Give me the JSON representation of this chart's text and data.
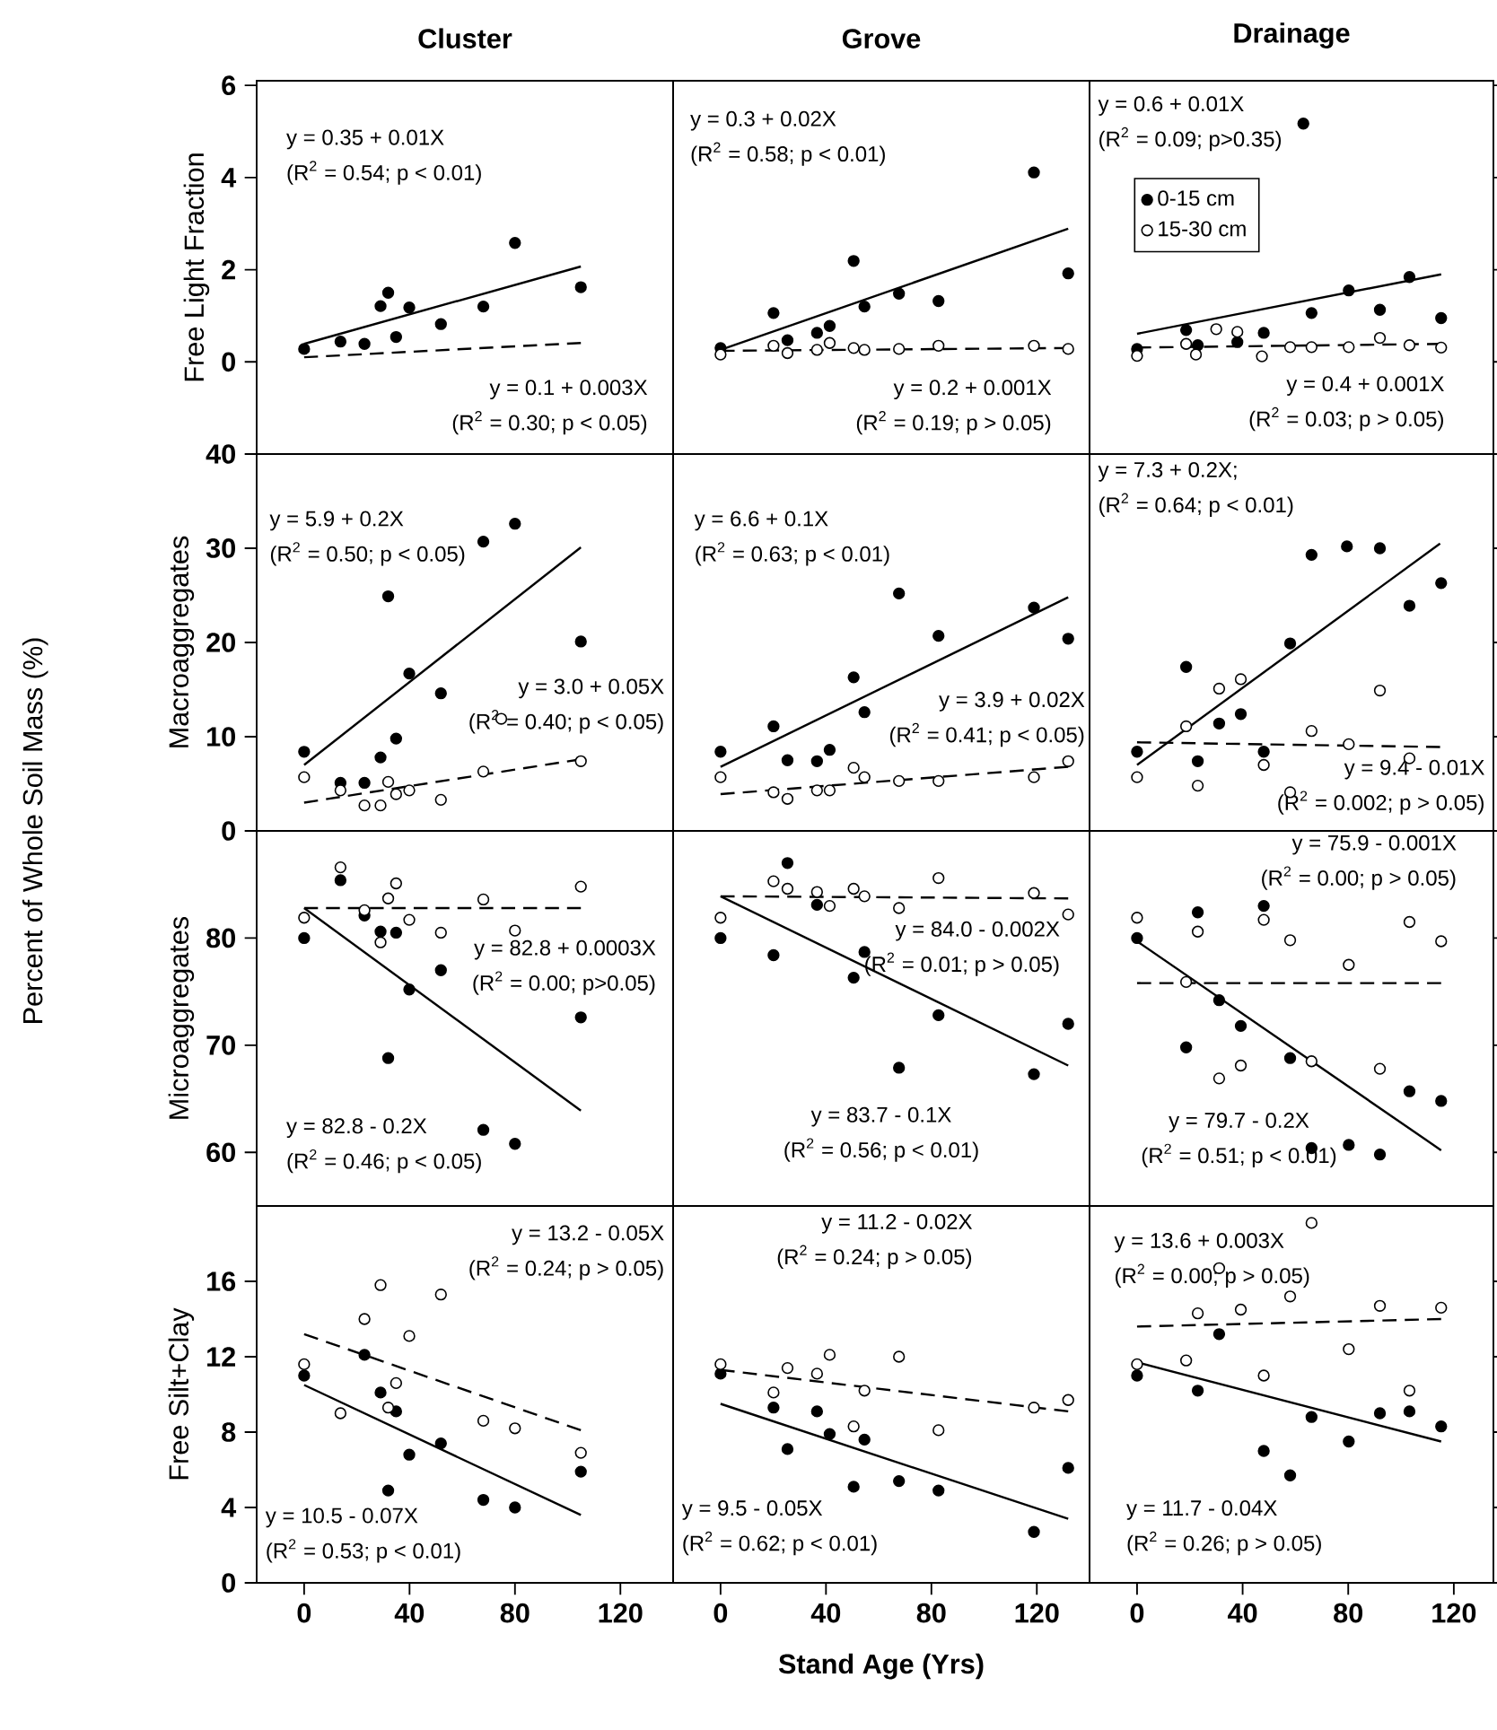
{
  "chart_data": [
    {
      "type": "scatter",
      "title": "Cluster",
      "ylabel": "Free Light Fraction",
      "xlim": [
        -18,
        140
      ],
      "ylim": [
        -2,
        6.1
      ],
      "xticks": [
        0,
        40,
        80,
        120
      ],
      "yticks": [
        0,
        2,
        4,
        6
      ],
      "tick_labels": "y",
      "series": [
        {
          "marker": "circle",
          "color": "#000000",
          "x": [
            0,
            13.8,
            22.9,
            29.0,
            31.9,
            34.9,
            39.9,
            51.9,
            68.0,
            80.0,
            105.0
          ],
          "values": [
            0.28,
            0.44,
            0.39,
            1.21,
            1.5,
            0.54,
            1.18,
            0.82,
            1.2,
            2.58,
            1.62
          ]
        },
        {
          "type": "line",
          "marker": "none",
          "color": "#000000",
          "line_style": "solid",
          "x": [
            0,
            105
          ],
          "values": [
            0.39,
            2.07
          ]
        },
        {
          "type": "line",
          "marker": "none",
          "color": "#000000",
          "line_style": "dashed",
          "x": [
            0,
            105
          ],
          "values": [
            0.1,
            0.41
          ]
        }
      ],
      "annotations": [
        "y = 0.35 + 0.01X",
        "(R$^{2}$ = 0.54; p < 0.01)",
        "y = 0.1 + 0.003X",
        "(R$^{2}$ = 0.30; p < 0.05)"
      ]
    },
    {
      "type": "scatter",
      "title": "Grove",
      "xlim": [
        -18,
        140
      ],
      "ylim": [
        -2,
        6.1
      ],
      "xticks": [
        0,
        40,
        80,
        120
      ],
      "yticks": [
        0,
        2,
        4,
        6
      ],
      "tick_labels": false,
      "series": [
        {
          "marker": "circle",
          "color": "#000000",
          "x": [
            0,
            20.1,
            25.4,
            36.6,
            41.4,
            50.5,
            54.6,
            67.7,
            82.7,
            118.9,
            131.9
          ],
          "values": [
            0.3,
            1.06,
            0.47,
            0.63,
            0.78,
            2.19,
            1.2,
            1.48,
            1.32,
            4.11,
            1.92
          ]
        },
        {
          "marker": "circle",
          "color": "#ffffff",
          "x": [
            0,
            20.1,
            25.4,
            36.6,
            41.4,
            50.5,
            54.6,
            67.7,
            82.7,
            118.9,
            131.9
          ],
          "values": [
            0.16,
            0.35,
            0.19,
            0.26,
            0.41,
            0.3,
            0.26,
            0.28,
            0.35,
            0.35,
            0.28
          ]
        },
        {
          "type": "line",
          "marker": "none",
          "color": "#000000",
          "line_style": "solid",
          "x": [
            0,
            131.9
          ],
          "values": [
            0.26,
            2.89
          ]
        },
        {
          "type": "line",
          "marker": "none",
          "color": "#000000",
          "line_style": "dashed",
          "x": [
            0,
            131.9
          ],
          "values": [
            0.24,
            0.3
          ]
        }
      ],
      "annotations": [
        "y = 0.3 + 0.02X",
        "(R$^{2}$ = 0.58; p < 0.01)",
        "y = 0.2 + 0.001X",
        "(R$^{2}$ = 0.19; p > 0.05)"
      ]
    },
    {
      "type": "scatter",
      "title": "Drainage",
      "xlim": [
        -18,
        135
      ],
      "ylim": [
        -2,
        6.1
      ],
      "xticks": [
        0,
        40,
        80,
        120
      ],
      "yticks": [
        0,
        2,
        4,
        6
      ],
      "tick_labels": false,
      "legend": "top left",
      "series": [
        {
          "name": "0-15 cm",
          "marker": "circle",
          "color": "#000000",
          "x": [
            0,
            18.6,
            23.0,
            38.0,
            48.0,
            63.0,
            66.1,
            80.2,
            92.0,
            103.2,
            115.2
          ],
          "values": [
            0.28,
            0.69,
            0.36,
            0.43,
            0.63,
            5.17,
            1.06,
            1.55,
            1.13,
            1.84,
            0.95
          ]
        },
        {
          "name": "15-30 cm",
          "marker": "circle",
          "color": "#ffffff",
          "x": [
            0,
            18.6,
            22.3,
            30.0,
            38.0,
            47.3,
            58.0,
            66.1,
            80.2,
            92.0,
            103.2,
            115.2
          ],
          "values": [
            0.13,
            0.39,
            0.16,
            0.71,
            0.65,
            0.12,
            0.32,
            0.32,
            0.32,
            0.52,
            0.36,
            0.31
          ]
        },
        {
          "type": "line",
          "marker": "none",
          "color": "#000000",
          "line_style": "solid",
          "x": [
            0,
            115.2
          ],
          "values": [
            0.61,
            1.9
          ]
        },
        {
          "type": "line",
          "marker": "none",
          "color": "#000000",
          "line_style": "dashed",
          "x": [
            0,
            115.2
          ],
          "values": [
            0.31,
            0.39
          ]
        }
      ],
      "annotations": [
        "y = 0.6 + 0.01X",
        "(R$^{2}$ = 0.09; p>0.35)",
        "y = 0.4 + 0.001X",
        "(R$^{2}$ = 0.03; p > 0.05)"
      ]
    },
    {
      "type": "scatter",
      "ylabel": "Macroaggregates",
      "xlim": [
        -18,
        140
      ],
      "ylim": [
        0,
        40
      ],
      "xticks": [
        0,
        40,
        80,
        120
      ],
      "yticks": [
        0,
        10,
        20,
        30,
        40
      ],
      "tick_labels": "y",
      "series": [
        {
          "marker": "circle",
          "color": "#000000",
          "x": [
            0,
            13.8,
            22.9,
            29.0,
            31.9,
            34.9,
            39.9,
            51.9,
            68.0,
            80.0,
            105.0
          ],
          "values": [
            8.4,
            5.1,
            5.1,
            7.8,
            24.9,
            9.8,
            16.7,
            14.6,
            30.7,
            32.6,
            20.1
          ]
        },
        {
          "marker": "circle",
          "color": "#ffffff",
          "x": [
            0,
            13.8,
            22.9,
            29.0,
            31.9,
            34.9,
            39.9,
            51.9,
            68.0,
            74.8,
            105.0
          ],
          "values": [
            5.7,
            4.3,
            2.7,
            2.7,
            5.2,
            3.9,
            4.3,
            3.3,
            6.3,
            11.9,
            7.4
          ]
        },
        {
          "type": "line",
          "marker": "none",
          "color": "#000000",
          "line_style": "solid",
          "x": [
            0,
            105
          ],
          "values": [
            7.0,
            30.1
          ]
        },
        {
          "type": "line",
          "marker": "none",
          "color": "#000000",
          "line_style": "dashed",
          "x": [
            0,
            105
          ],
          "values": [
            3.0,
            7.6
          ]
        }
      ],
      "annotations": [
        "y = 5.9 + 0.2X",
        "(R$^{2}$ = 0.50; p < 0.05)",
        "y = 3.0 + 0.05X",
        "(R$^{2}$ = 0.40; p < 0.05)",
        "Percent of Whole Soil Mass (%)"
      ]
    },
    {
      "type": "scatter",
      "xlim": [
        -18,
        140
      ],
      "ylim": [
        0,
        40
      ],
      "xticks": [
        0,
        40,
        80,
        120
      ],
      "yticks": [
        0,
        10,
        20,
        30,
        40
      ],
      "tick_labels": false,
      "series": [
        {
          "marker": "circle",
          "color": "#000000",
          "x": [
            0,
            20.1,
            25.4,
            36.6,
            41.4,
            50.5,
            54.6,
            67.7,
            82.7,
            118.9,
            131.9
          ],
          "values": [
            8.4,
            11.1,
            7.5,
            7.4,
            8.6,
            16.3,
            12.6,
            25.2,
            20.7,
            23.7,
            20.4
          ]
        },
        {
          "marker": "circle",
          "color": "#ffffff",
          "x": [
            0,
            20.1,
            25.4,
            36.6,
            41.4,
            50.5,
            54.6,
            67.7,
            82.7,
            118.9,
            131.9
          ],
          "values": [
            5.7,
            4.1,
            3.4,
            4.3,
            4.3,
            6.7,
            5.7,
            5.3,
            5.3,
            5.7,
            7.4
          ]
        },
        {
          "type": "line",
          "marker": "none",
          "color": "#000000",
          "line_style": "solid",
          "x": [
            0,
            131.9
          ],
          "values": [
            6.8,
            24.8
          ]
        },
        {
          "type": "line",
          "marker": "none",
          "color": "#000000",
          "line_style": "dashed",
          "x": [
            0,
            131.9
          ],
          "values": [
            3.9,
            6.8
          ]
        }
      ],
      "annotations": [
        "y = 6.6 + 0.1X",
        "(R$^{2}$ = 0.63; p < 0.01)",
        "y = 3.9 + 0.02X",
        "(R$^{2}$ = 0.41; p < 0.05)"
      ]
    },
    {
      "type": "scatter",
      "xlim": [
        -18,
        135
      ],
      "ylim": [
        0,
        40
      ],
      "xticks": [
        0,
        40,
        80,
        120
      ],
      "yticks": [
        0,
        10,
        20,
        30,
        40
      ],
      "tick_labels": false,
      "series": [
        {
          "marker": "circle",
          "color": "#000000",
          "x": [
            0,
            18.6,
            23.0,
            31.1,
            39.3,
            48.0,
            58.0,
            66.1,
            79.5,
            92.0,
            103.2,
            115.2
          ],
          "values": [
            8.4,
            17.4,
            7.4,
            11.4,
            12.4,
            8.4,
            19.9,
            29.3,
            30.2,
            30.0,
            23.9,
            26.3
          ]
        },
        {
          "marker": "circle",
          "color": "#ffffff",
          "x": [
            0,
            18.6,
            23.0,
            31.1,
            39.3,
            48.0,
            58.0,
            66.1,
            80.2,
            92.0,
            103.2
          ],
          "values": [
            5.7,
            11.1,
            4.8,
            15.1,
            16.1,
            7.0,
            4.1,
            10.6,
            9.2,
            14.9,
            7.7
          ]
        },
        {
          "type": "line",
          "marker": "none",
          "color": "#000000",
          "line_style": "solid",
          "x": [
            0,
            114.8
          ],
          "values": [
            7.0,
            30.5
          ]
        },
        {
          "type": "line",
          "marker": "none",
          "color": "#000000",
          "line_style": "dashed",
          "x": [
            0,
            114.8
          ],
          "values": [
            9.4,
            8.9
          ]
        }
      ],
      "annotations": [
        "y = 7.3 + 0.2X;",
        "(R$^{2}$ = 0.64; p < 0.01)",
        "y = 9.4 - 0.01X",
        "(R$^{2}$ = 0.002; p > 0.05)"
      ]
    },
    {
      "type": "scatter",
      "ylabel": "Microaggregates",
      "xlim": [
        -18,
        140
      ],
      "ylim": [
        55,
        90
      ],
      "xticks": [
        0,
        40,
        80,
        120
      ],
      "yticks": [
        60,
        70,
        80
      ],
      "tick_labels": "y",
      "series": [
        {
          "marker": "circle",
          "color": "#000000",
          "x": [
            0,
            13.8,
            22.9,
            29.0,
            31.9,
            34.9,
            39.9,
            51.9,
            68.0,
            80.0,
            105.0
          ],
          "values": [
            80.0,
            85.4,
            82.1,
            80.6,
            68.8,
            80.5,
            75.2,
            77.0,
            62.1,
            60.8,
            72.6
          ]
        },
        {
          "marker": "circle",
          "color": "#ffffff",
          "x": [
            0,
            13.8,
            22.9,
            29.0,
            31.9,
            34.9,
            39.9,
            51.9,
            68.0,
            80.0,
            105.0
          ],
          "values": [
            81.9,
            86.6,
            82.6,
            79.6,
            83.7,
            85.1,
            81.7,
            80.5,
            83.6,
            80.7,
            84.8
          ]
        },
        {
          "type": "line",
          "marker": "none",
          "color": "#000000",
          "line_style": "solid",
          "x": [
            0,
            105
          ],
          "values": [
            82.8,
            63.9
          ]
        },
        {
          "type": "line",
          "marker": "none",
          "color": "#000000",
          "line_style": "dashed",
          "x": [
            0,
            105
          ],
          "values": [
            82.8,
            82.8
          ]
        }
      ],
      "annotations": [
        "y = 82.8 + 0.0003X",
        "(R$^{2}$ = 0.00; p>0.05)",
        "y = 82.8 - 0.2X",
        "(R$^{2}$ = 0.46; p < 0.05)"
      ]
    },
    {
      "type": "scatter",
      "xlim": [
        -18,
        140
      ],
      "ylim": [
        55,
        90
      ],
      "xticks": [
        0,
        40,
        80,
        120
      ],
      "yticks": [
        60,
        70,
        80
      ],
      "tick_labels": false,
      "series": [
        {
          "marker": "circle",
          "color": "#000000",
          "x": [
            0,
            20.1,
            25.4,
            36.6,
            50.5,
            54.6,
            67.7,
            82.7,
            118.9,
            131.9
          ],
          "values": [
            80.0,
            78.4,
            87.0,
            83.1,
            76.3,
            78.7,
            67.9,
            72.8,
            67.3,
            72.0
          ]
        },
        {
          "marker": "circle",
          "color": "#ffffff",
          "x": [
            0,
            20.1,
            25.4,
            36.6,
            41.4,
            50.5,
            54.6,
            67.7,
            82.7,
            118.9,
            131.9
          ],
          "values": [
            81.9,
            85.3,
            84.6,
            84.3,
            83.0,
            84.6,
            83.9,
            82.8,
            85.6,
            84.2,
            82.2
          ]
        },
        {
          "type": "line",
          "marker": "none",
          "color": "#000000",
          "line_style": "solid",
          "x": [
            0,
            131.9
          ],
          "values": [
            83.9,
            68.1
          ]
        },
        {
          "type": "line",
          "marker": "none",
          "color": "#000000",
          "line_style": "dashed",
          "x": [
            0,
            131.9
          ],
          "values": [
            83.9,
            83.7
          ]
        }
      ],
      "annotations": [
        "y = 84.0 - 0.002X",
        "(R$^{2}$ = 0.01; p > 0.05)",
        "y = 83.7 - 0.1X",
        "(R$^{2}$ = 0.56; p < 0.01)"
      ]
    },
    {
      "type": "scatter",
      "xlim": [
        -18,
        135
      ],
      "ylim": [
        55,
        90
      ],
      "xticks": [
        0,
        40,
        80,
        120
      ],
      "yticks": [
        60,
        70,
        80
      ],
      "tick_labels": false,
      "series": [
        {
          "marker": "circle",
          "color": "#000000",
          "x": [
            0,
            18.6,
            23.0,
            31.1,
            39.3,
            48.0,
            58.0,
            66.1,
            80.2,
            92.0,
            103.2,
            115.2
          ],
          "values": [
            80.0,
            69.8,
            82.4,
            74.2,
            71.8,
            83.0,
            68.8,
            60.4,
            60.7,
            59.8,
            65.7,
            64.8
          ]
        },
        {
          "marker": "circle",
          "color": "#ffffff",
          "x": [
            0,
            18.6,
            23.0,
            31.1,
            39.3,
            48.0,
            58.0,
            66.1,
            80.2,
            92.0,
            103.2,
            115.2
          ],
          "values": [
            81.9,
            75.9,
            80.6,
            66.9,
            68.1,
            81.7,
            79.8,
            68.5,
            77.5,
            67.8,
            81.5,
            79.7
          ]
        },
        {
          "type": "line",
          "marker": "none",
          "color": "#000000",
          "line_style": "solid",
          "x": [
            0,
            115.2
          ],
          "values": [
            79.7,
            60.2
          ]
        },
        {
          "type": "line",
          "marker": "none",
          "color": "#000000",
          "line_style": "dashed",
          "x": [
            0,
            115.2
          ],
          "values": [
            75.8,
            75.8
          ]
        }
      ],
      "annotations": [
        "y = 75.9 - 0.001X",
        "(R$^{2}$ = 0.00; p > 0.05)",
        "y = 79.7 - 0.2X",
        "(R$^{2}$ = 0.51; p < 0.01)"
      ]
    },
    {
      "type": "scatter",
      "ylabel": "Free Silt+Clay",
      "xlim": [
        -18,
        140
      ],
      "ylim": [
        0,
        20
      ],
      "xticks": [
        0,
        40,
        80,
        120
      ],
      "yticks": [
        0,
        4,
        8,
        12,
        16
      ],
      "series": [
        {
          "marker": "circle",
          "color": "#000000",
          "x": [
            0,
            22.9,
            29.0,
            31.9,
            34.9,
            39.9,
            51.9,
            68.0,
            80.0,
            105.0
          ],
          "values": [
            11.0,
            12.1,
            10.1,
            4.9,
            9.1,
            6.8,
            7.4,
            4.4,
            4.0,
            5.9
          ]
        },
        {
          "marker": "circle",
          "color": "#ffffff",
          "x": [
            0,
            13.8,
            22.9,
            29.0,
            31.9,
            34.9,
            39.9,
            51.9,
            68.0,
            80.0,
            105.0
          ],
          "values": [
            11.6,
            9.0,
            14.0,
            15.8,
            9.3,
            10.6,
            13.1,
            15.3,
            8.6,
            8.2,
            6.9
          ]
        },
        {
          "type": "line",
          "marker": "none",
          "color": "#000000",
          "line_style": "solid",
          "x": [
            0,
            105
          ],
          "values": [
            10.5,
            3.6
          ]
        },
        {
          "type": "line",
          "marker": "none",
          "color": "#000000",
          "line_style": "dashed",
          "x": [
            0,
            105
          ],
          "values": [
            13.2,
            8.1
          ]
        }
      ],
      "annotations": [
        "y = 13.2 - 0.05X",
        "(R$^{2}$ = 0.24; p > 0.05)",
        "y = 10.5 - 0.07X",
        "(R$^{2}$ = 0.53; p < 0.01)"
      ]
    },
    {
      "type": "scatter",
      "xlabel": "Stand Age (Yrs)",
      "xlim": [
        -18,
        140
      ],
      "ylim": [
        0,
        20
      ],
      "xticks": [
        0,
        40,
        80,
        120
      ],
      "yticks": [
        0,
        4,
        8,
        12,
        16
      ],
      "tick_labels": "x",
      "series": [
        {
          "marker": "circle",
          "color": "#000000",
          "x": [
            0,
            20.1,
            25.4,
            36.6,
            41.4,
            50.5,
            54.6,
            67.7,
            82.7,
            118.9,
            131.9
          ],
          "values": [
            11.1,
            9.3,
            7.1,
            9.1,
            7.9,
            5.1,
            7.6,
            5.4,
            4.9,
            2.7,
            6.1
          ]
        },
        {
          "marker": "circle",
          "color": "#ffffff",
          "x": [
            0,
            20.1,
            25.4,
            36.6,
            41.4,
            50.5,
            54.6,
            67.7,
            82.7,
            118.9,
            131.9
          ],
          "values": [
            11.6,
            10.1,
            11.4,
            11.1,
            12.1,
            8.3,
            10.2,
            12.0,
            8.1,
            9.3,
            9.7
          ]
        },
        {
          "type": "line",
          "marker": "none",
          "color": "#000000",
          "line_style": "solid",
          "x": [
            0,
            131.9
          ],
          "values": [
            9.5,
            3.4
          ]
        },
        {
          "type": "line",
          "marker": "none",
          "color": "#000000",
          "line_style": "dashed",
          "x": [
            0,
            131.9
          ],
          "values": [
            11.3,
            9.1
          ]
        }
      ],
      "annotations": [
        "y = 11.2 - 0.02X",
        "(R$^{2}$ = 0.24; p > 0.05)",
        "y = 9.5 - 0.05X",
        "(R$^{2}$ = 0.62; p < 0.01)"
      ]
    },
    {
      "type": "scatter",
      "xlim": [
        -18,
        135
      ],
      "ylim": [
        0,
        20
      ],
      "xticks": [
        0,
        40,
        80,
        120
      ],
      "yticks": [
        0,
        4,
        8,
        12,
        16
      ],
      "tick_labels": "x",
      "series": [
        {
          "marker": "circle",
          "color": "#000000",
          "x": [
            0,
            23.0,
            31.1,
            48.0,
            58.0,
            66.1,
            80.2,
            92.0,
            103.2,
            115.2
          ],
          "values": [
            11.0,
            10.2,
            13.2,
            7.0,
            5.7,
            8.8,
            7.5,
            9.0,
            9.1,
            8.3
          ]
        },
        {
          "marker": "circle",
          "color": "#ffffff",
          "x": [
            0,
            18.6,
            23.0,
            31.1,
            39.3,
            48.0,
            58.0,
            66.1,
            80.2,
            92.0,
            103.2,
            115.2
          ],
          "values": [
            11.6,
            11.8,
            14.3,
            16.7,
            14.5,
            11.0,
            15.2,
            19.1,
            12.4,
            14.7,
            10.2,
            14.6
          ]
        },
        {
          "type": "line",
          "marker": "none",
          "color": "#000000",
          "line_style": "solid",
          "x": [
            0,
            115.2
          ],
          "values": [
            11.7,
            7.5
          ]
        },
        {
          "type": "line",
          "marker": "none",
          "color": "#000000",
          "line_style": "dashed",
          "x": [
            0,
            115.2
          ],
          "values": [
            13.6,
            14.0
          ]
        }
      ],
      "annotations": [
        "y = 13.6 + 0.003X",
        "(R$^{2}$ = 0.00; p > 0.05)",
        "y = 11.7 - 0.04X",
        "(R$^{2}$ = 0.26; p > 0.05)"
      ]
    }
  ]
}
